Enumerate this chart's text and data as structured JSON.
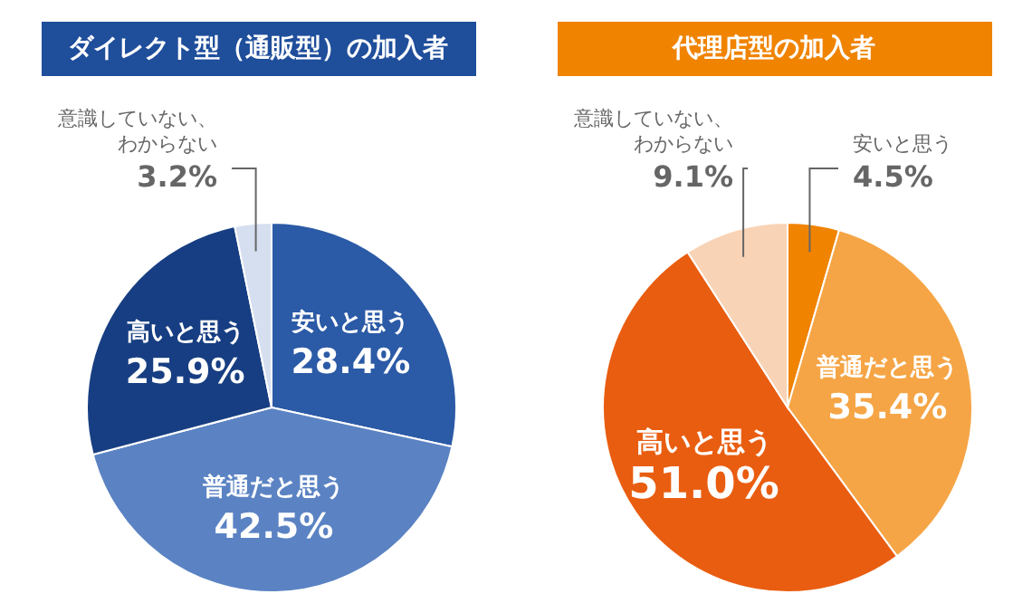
{
  "chart_data": [
    {
      "type": "pie",
      "title": "ダイレクト型（通販型）の加入者",
      "categories": [
        "安いと思う",
        "普通だと思う",
        "高いと思う",
        "意識していない、わからない"
      ],
      "values": [
        28.4,
        42.5,
        25.9,
        3.2
      ],
      "value_labels": [
        "28.4%",
        "42.5%",
        "25.9%",
        "3.2%"
      ],
      "colors": [
        "#2b5aa6",
        "#5b83c3",
        "#173e82",
        "#d5dff0"
      ]
    },
    {
      "type": "pie",
      "title": "代理店型の加入者",
      "categories": [
        "安いと思う",
        "普通だと思う",
        "高いと思う",
        "意識していない、わからない"
      ],
      "values": [
        4.5,
        35.4,
        51.0,
        9.1
      ],
      "value_labels": [
        "4.5%",
        "35.4%",
        "51.0%",
        "9.1%"
      ],
      "colors": [
        "#f08300",
        "#f5a545",
        "#e95d10",
        "#f9d3b5"
      ]
    }
  ]
}
